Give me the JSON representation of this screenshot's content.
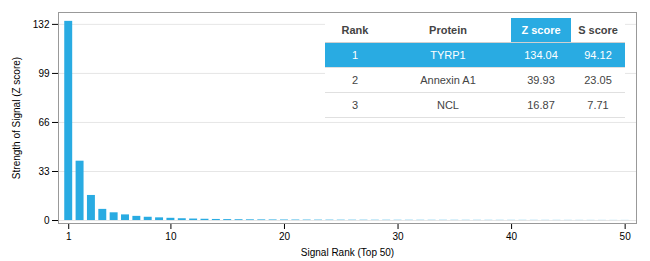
{
  "chart_data": {
    "type": "bar",
    "x": [
      1,
      2,
      3,
      4,
      5,
      6,
      7,
      8,
      9,
      10,
      11,
      12,
      13,
      14,
      15,
      16,
      17,
      18,
      19,
      20,
      21,
      22,
      23,
      24,
      25,
      26,
      27,
      28,
      29,
      30,
      31,
      32,
      33,
      34,
      35,
      36,
      37,
      38,
      39,
      40,
      41,
      42,
      43,
      44,
      45,
      46,
      47,
      48,
      49,
      50
    ],
    "values": [
      134.04,
      39.93,
      16.87,
      7.5,
      5.2,
      3.8,
      2.8,
      2.2,
      1.8,
      1.5,
      1.2,
      1.0,
      0.85,
      0.72,
      0.62,
      0.54,
      0.47,
      0.42,
      0.38,
      0.35,
      0.32,
      0.29,
      0.27,
      0.25,
      0.23,
      0.21,
      0.2,
      0.19,
      0.18,
      0.17,
      0.16,
      0.155,
      0.15,
      0.145,
      0.14,
      0.135,
      0.13,
      0.125,
      0.12,
      0.115,
      0.11,
      0.105,
      0.1,
      0.095,
      0.09,
      0.085,
      0.08,
      0.075,
      0.07,
      0.065
    ],
    "color": "#29ABE2",
    "xlabel": "Signal Rank (Top 50)",
    "ylabel": "Strength of Signal (Z score)",
    "xlim": [
      0.1,
      51
    ],
    "ylim": [
      -2,
      140
    ],
    "xticks": [
      1,
      10,
      20,
      30,
      40,
      50
    ],
    "yticks": [
      0,
      33,
      66,
      99,
      132
    ],
    "grid": true,
    "table": {
      "headers": [
        "Rank",
        "Protein",
        "Z score",
        "S score"
      ],
      "rows": [
        [
          "1",
          "TYRP1",
          "134.04",
          "94.12"
        ],
        [
          "2",
          "Annexin A1",
          "39.93",
          "23.05"
        ],
        [
          "3",
          "NCL",
          "16.87",
          "7.71"
        ]
      ],
      "highlight_row": 0,
      "highlight_column": 2
    }
  }
}
